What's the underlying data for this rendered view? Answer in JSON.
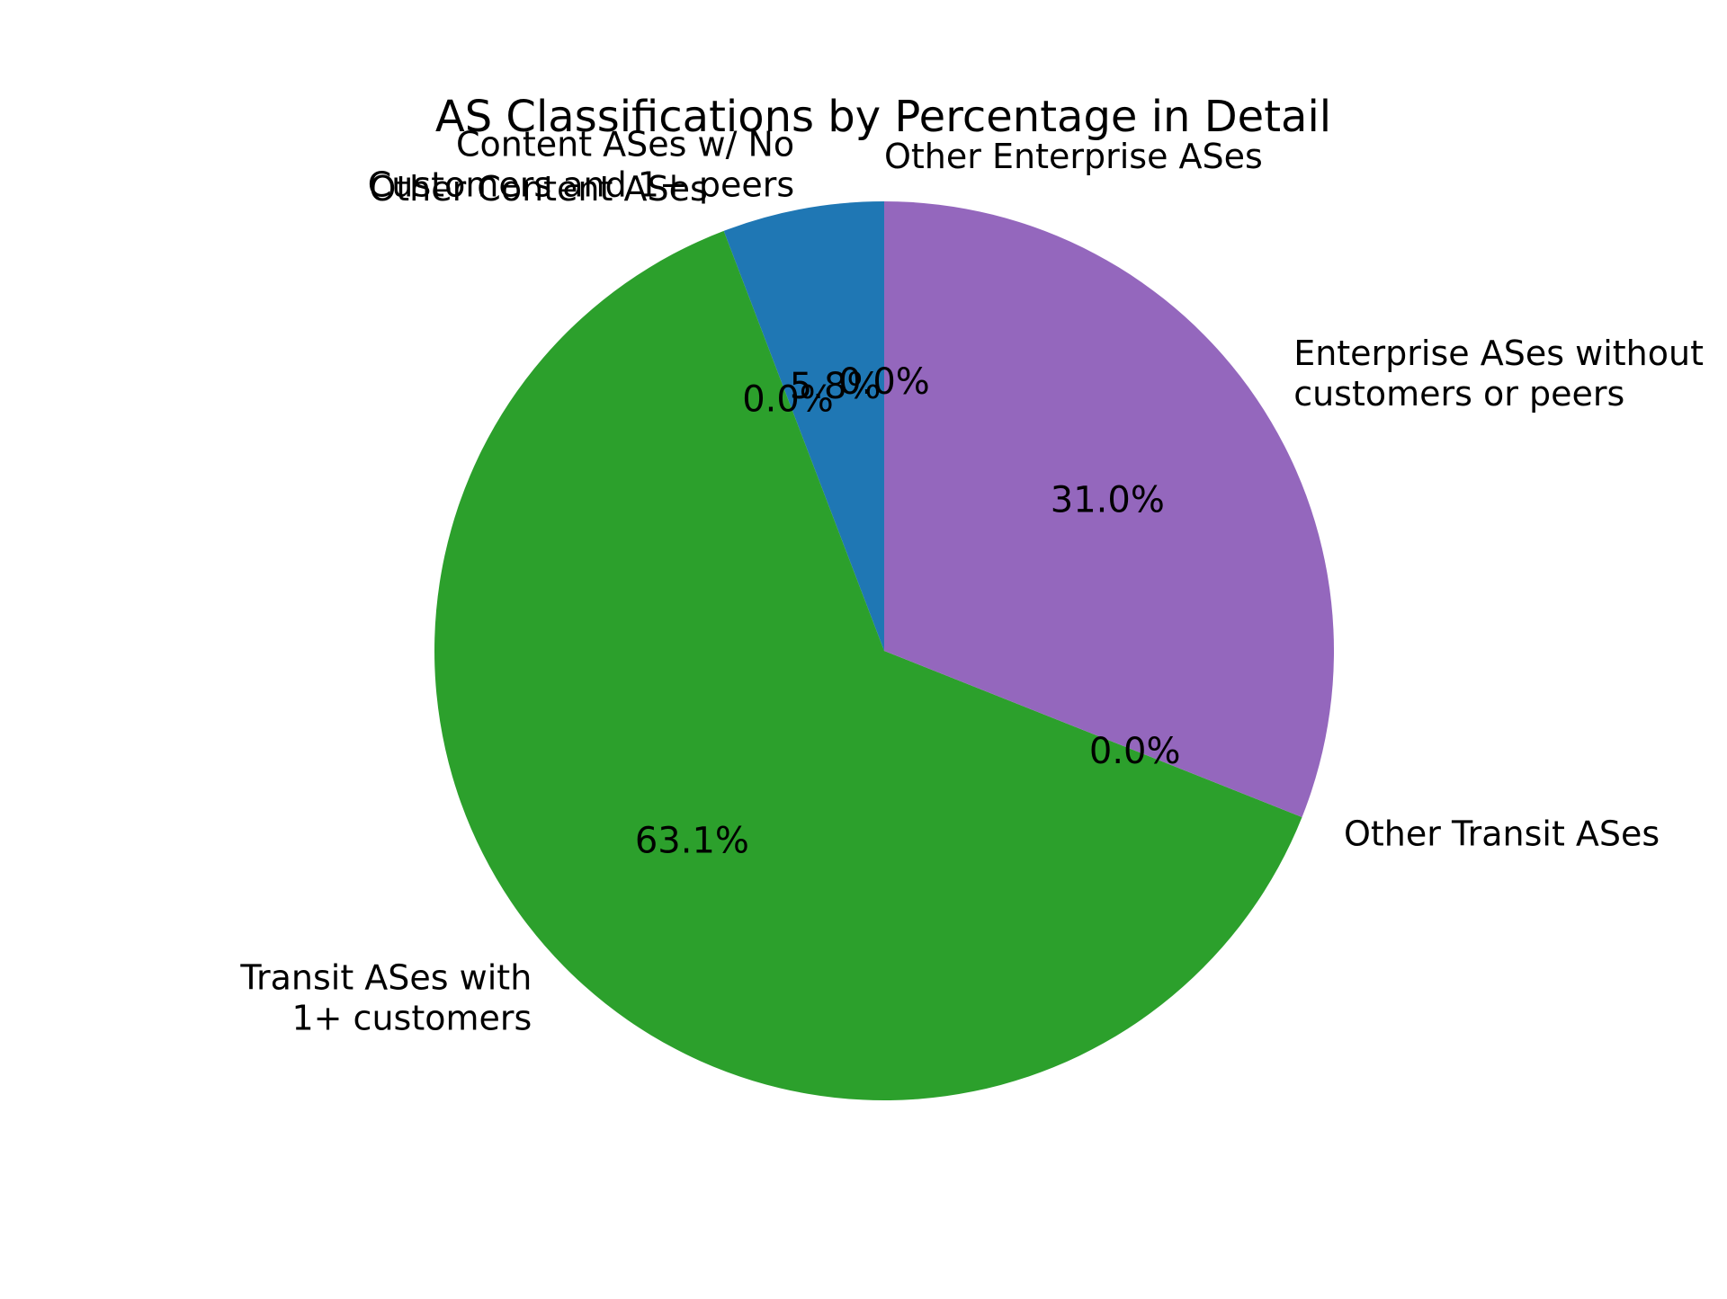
{
  "chart_data": {
    "type": "pie",
    "title": "AS Classifications by Percentage in Detail",
    "start_angle_deg": 90,
    "direction": "counterclockwise",
    "slices": [
      {
        "label": "Other Enterprise ASes",
        "value": 0.0,
        "pct_label": "0.0%",
        "color": "#ff7f0e"
      },
      {
        "label": "Content ASes w/ No Customers and 1+ peers",
        "value": 5.8,
        "pct_label": "5.8%",
        "color": "#1f77b4"
      },
      {
        "label": "Other Content ASes",
        "value": 0.0,
        "pct_label": "0.0%",
        "color": "#d62728"
      },
      {
        "label": "Transit ASes with 1+ customers",
        "value": 63.1,
        "pct_label": "63.1%",
        "color": "#2ca02c"
      },
      {
        "label": "Other Transit ASes",
        "value": 0.0,
        "pct_label": "0.0%",
        "color": "#8c564b"
      },
      {
        "label": "Enterprise ASes without customers or peers",
        "value": 31.0,
        "pct_label": "31.0%",
        "color": "#9467bd"
      }
    ]
  }
}
